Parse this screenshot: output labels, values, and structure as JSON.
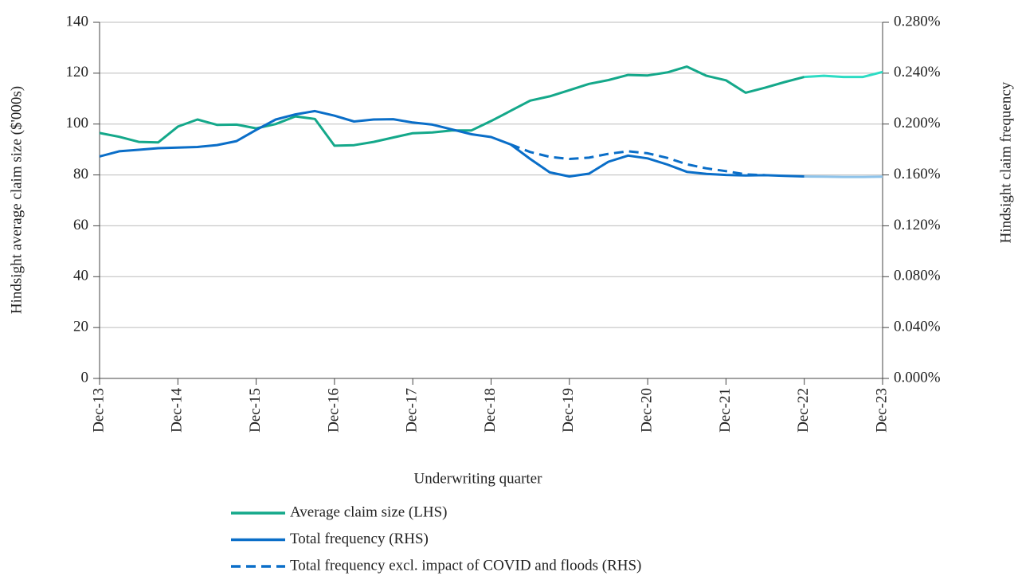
{
  "chart_data": {
    "type": "line",
    "xlabel": "Underwriting quarter",
    "ylabel": "Hindsight average claim size ($'000s)",
    "y2label": "Hindsight claim frequency",
    "categories": [
      "Dec-13",
      null,
      null,
      null,
      "Dec-14",
      null,
      null,
      null,
      "Dec-15",
      null,
      null,
      null,
      "Dec-16",
      null,
      null,
      null,
      "Dec-17",
      null,
      null,
      null,
      "Dec-18",
      null,
      null,
      null,
      "Dec-19",
      null,
      null,
      null,
      "Dec-20",
      null,
      null,
      null,
      "Dec-21",
      null,
      null,
      null,
      "Dec-22",
      null,
      null,
      null,
      "Dec-23"
    ],
    "projected_after": "Dec-22",
    "ylim": [
      0,
      140
    ],
    "yticks": [
      0,
      20,
      40,
      60,
      80,
      100,
      120,
      140
    ],
    "y2lim": [
      0,
      0.28
    ],
    "y2ticks": [
      {
        "value": 0,
        "label": "0.000%"
      },
      {
        "value": 0.04,
        "label": "0.040%"
      },
      {
        "value": 0.08,
        "label": "0.080%"
      },
      {
        "value": 0.12,
        "label": "0.120%"
      },
      {
        "value": 0.16,
        "label": "0.160%"
      },
      {
        "value": 0.2,
        "label": "0.200%"
      },
      {
        "value": 0.24,
        "label": "0.240%"
      },
      {
        "value": 0.28,
        "label": "0.280%"
      }
    ],
    "grid": true,
    "legend": "bottom",
    "series": [
      {
        "name": "Average claim size (LHS)",
        "color": "#14a88a",
        "projection_color": "#2ddcc4",
        "dash": false,
        "values": [
          96.5,
          95,
          93,
          92.8,
          99,
          101.8,
          99.7,
          99.8,
          98.3,
          100,
          103,
          102,
          91.5,
          91.7,
          93,
          94.7,
          96.4,
          96.7,
          97.5,
          97.5,
          101.2,
          105.2,
          109.2,
          110.9,
          113.3,
          115.8,
          117.3,
          119.3,
          119.1,
          120.3,
          122.6,
          119,
          117.2,
          112.3,
          114.3,
          116.5,
          118.5,
          119,
          118.5,
          118.5,
          120.5
        ]
      },
      {
        "name": "Total frequency (RHS)",
        "color": "#0a6ec8",
        "projection_color": "#8ec3ea",
        "dash": false,
        "axis": "y2",
        "values": [
          0.1745,
          0.1786,
          0.1798,
          0.181,
          0.1815,
          0.182,
          0.1835,
          0.1866,
          0.1954,
          0.2036,
          0.2076,
          0.2102,
          0.2066,
          0.202,
          0.2036,
          0.2038,
          0.2012,
          0.1996,
          0.1958,
          0.192,
          0.1898,
          0.184,
          0.1726,
          0.162,
          0.1588,
          0.161,
          0.1704,
          0.1752,
          0.173,
          0.1682,
          0.1624,
          0.1608,
          0.16,
          0.1596,
          0.1598,
          0.1592,
          0.1588,
          0.1586,
          0.1584,
          0.1584,
          0.1586
        ]
      },
      {
        "name": "Total frequency excl. impact of COVID and floods (RHS)",
        "color": "#0a6ec8",
        "dash": true,
        "axis": "y2",
        "values": [
          null,
          null,
          null,
          null,
          null,
          null,
          null,
          null,
          null,
          null,
          null,
          null,
          null,
          null,
          null,
          null,
          null,
          null,
          null,
          null,
          null,
          0.184,
          0.178,
          0.1742,
          0.1726,
          0.1736,
          0.1766,
          0.1786,
          0.177,
          0.1734,
          0.1684,
          0.1652,
          0.163,
          0.1604,
          0.1598,
          null,
          null,
          null,
          null,
          null,
          null
        ]
      }
    ]
  }
}
